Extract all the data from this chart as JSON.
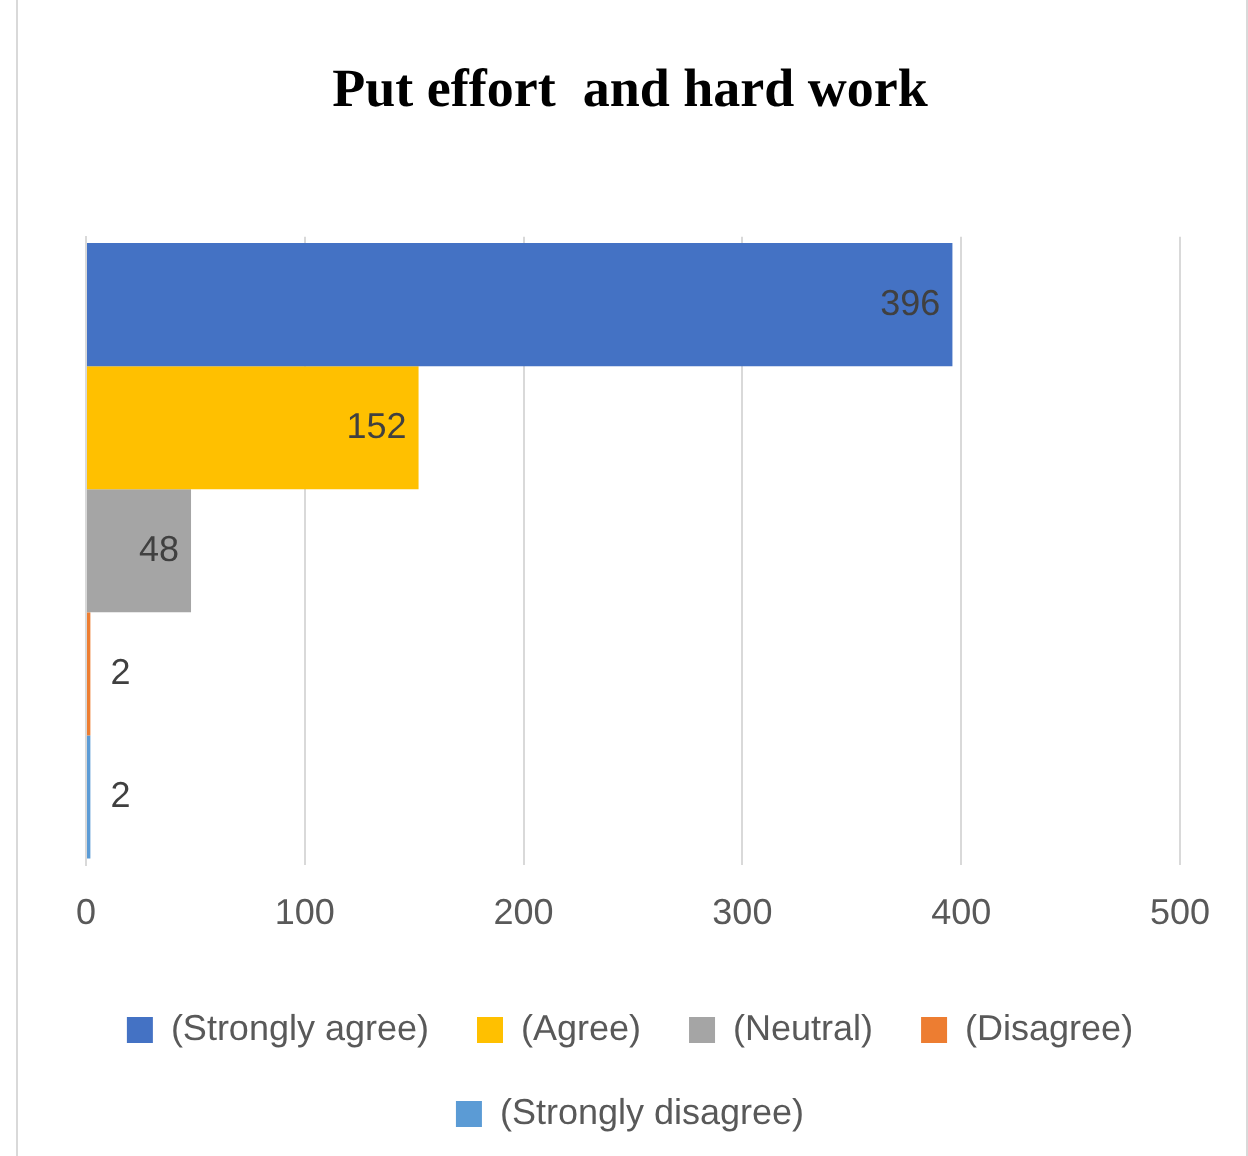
{
  "chart_data": {
    "type": "bar",
    "orientation": "horizontal",
    "title": "Put effort  and hard work",
    "categories": [
      null
    ],
    "series": [
      {
        "name": "(Strongly agree)",
        "color": "#4472c4",
        "values": [
          396
        ]
      },
      {
        "name": "(Agree)",
        "color": "#ffc000",
        "values": [
          152
        ]
      },
      {
        "name": "(Neutral)",
        "color": "#a5a5a5",
        "values": [
          48
        ]
      },
      {
        "name": "(Disagree)",
        "color": "#ed7d31",
        "values": [
          2
        ]
      },
      {
        "name": "(Strongly disagree)",
        "color": "#5b9bd5",
        "values": [
          2
        ]
      }
    ],
    "xlim": [
      0,
      500
    ],
    "xticks": [
      0,
      100,
      200,
      300,
      400,
      500
    ],
    "grid": "x",
    "legend": "bottom",
    "data_labels": true
  }
}
